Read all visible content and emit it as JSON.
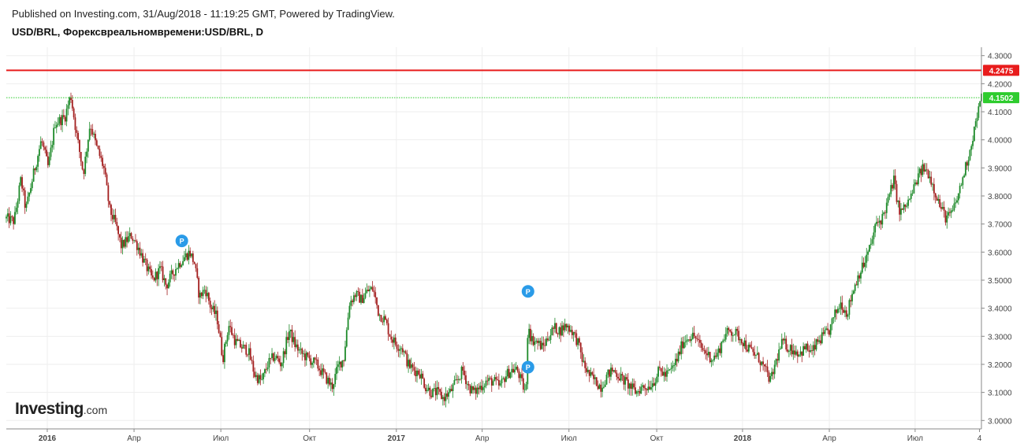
{
  "header": {
    "published": "Published on Investing.com, 31/Aug/2018 - 11:19:25 GMT, Powered by TradingView.",
    "symbol": "USD/BRL, Форексвреальномвремени:USD/BRL, D"
  },
  "logo": {
    "name": "Investing",
    "suffix": ".com"
  },
  "colors": {
    "up": "#1e8a2a",
    "down": "#a31f1f",
    "resistance": "#e81c1c",
    "current": "#2ecc2e",
    "grid": "#eeeeee",
    "axis": "#888888",
    "marker": "#2a9be8"
  },
  "chart_data": {
    "type": "candlestick",
    "ylim": [
      2.97,
      4.33
    ],
    "y_ticks": [
      "4.3000",
      "4.2000",
      "4.1000",
      "4.0000",
      "3.9000",
      "3.8000",
      "3.7000",
      "3.6000",
      "3.5000",
      "3.4000",
      "3.3000",
      "3.2000",
      "3.1000",
      "3.0000"
    ],
    "y_tick_values": [
      4.3,
      4.2,
      4.1,
      4.0,
      3.9,
      3.8,
      3.7,
      3.6,
      3.5,
      3.4,
      3.3,
      3.2,
      3.1,
      3.0
    ],
    "x_ticks": [
      "2016",
      "Апр",
      "Июл",
      "Окт",
      "2017",
      "Апр",
      "Июл",
      "Окт",
      "2018",
      "Апр",
      "Июл",
      "4"
    ],
    "x_tick_bold": [
      true,
      false,
      false,
      false,
      true,
      false,
      false,
      false,
      true,
      false,
      false,
      false
    ],
    "x_tick_pos": [
      0.042,
      0.131,
      0.22,
      0.311,
      0.4,
      0.488,
      0.577,
      0.667,
      0.755,
      0.844,
      0.932,
      0.998
    ],
    "horizontal_lines": [
      {
        "label": "4.2475",
        "value": 4.2475,
        "style": "solid",
        "color": "#e81c1c"
      },
      {
        "label": "4.1502",
        "value": 4.1502,
        "style": "dotted",
        "color": "#2ecc2e"
      }
    ],
    "markers": [
      {
        "label": "P",
        "x": 0.18,
        "y": 3.64
      },
      {
        "label": "P",
        "x": 0.535,
        "y": 3.46
      },
      {
        "label": "P",
        "x": 0.535,
        "y": 3.19
      }
    ],
    "path": [
      [
        0.0,
        3.72
      ],
      [
        0.008,
        3.71
      ],
      [
        0.015,
        3.86
      ],
      [
        0.02,
        3.75
      ],
      [
        0.028,
        3.88
      ],
      [
        0.036,
        4.0
      ],
      [
        0.043,
        3.9
      ],
      [
        0.05,
        4.06
      ],
      [
        0.06,
        4.08
      ],
      [
        0.066,
        4.16
      ],
      [
        0.072,
        4.02
      ],
      [
        0.079,
        3.88
      ],
      [
        0.086,
        4.06
      ],
      [
        0.092,
        3.98
      ],
      [
        0.1,
        3.9
      ],
      [
        0.106,
        3.75
      ],
      [
        0.112,
        3.7
      ],
      [
        0.118,
        3.62
      ],
      [
        0.128,
        3.66
      ],
      [
        0.135,
        3.62
      ],
      [
        0.142,
        3.56
      ],
      [
        0.15,
        3.5
      ],
      [
        0.158,
        3.54
      ],
      [
        0.164,
        3.48
      ],
      [
        0.17,
        3.52
      ],
      [
        0.175,
        3.55
      ],
      [
        0.182,
        3.58
      ],
      [
        0.188,
        3.6
      ],
      [
        0.193,
        3.56
      ],
      [
        0.198,
        3.44
      ],
      [
        0.204,
        3.47
      ],
      [
        0.21,
        3.4
      ],
      [
        0.216,
        3.37
      ],
      [
        0.222,
        3.22
      ],
      [
        0.228,
        3.34
      ],
      [
        0.235,
        3.28
      ],
      [
        0.242,
        3.26
      ],
      [
        0.248,
        3.25
      ],
      [
        0.255,
        3.16
      ],
      [
        0.262,
        3.14
      ],
      [
        0.268,
        3.2
      ],
      [
        0.275,
        3.23
      ],
      [
        0.282,
        3.2
      ],
      [
        0.29,
        3.32
      ],
      [
        0.296,
        3.27
      ],
      [
        0.302,
        3.24
      ],
      [
        0.31,
        3.22
      ],
      [
        0.318,
        3.2
      ],
      [
        0.326,
        3.16
      ],
      [
        0.334,
        3.12
      ],
      [
        0.341,
        3.2
      ],
      [
        0.346,
        3.22
      ],
      [
        0.352,
        3.42
      ],
      [
        0.358,
        3.45
      ],
      [
        0.364,
        3.43
      ],
      [
        0.37,
        3.46
      ],
      [
        0.376,
        3.47
      ],
      [
        0.382,
        3.38
      ],
      [
        0.388,
        3.36
      ],
      [
        0.394,
        3.3
      ],
      [
        0.4,
        3.27
      ],
      [
        0.406,
        3.26
      ],
      [
        0.412,
        3.2
      ],
      [
        0.418,
        3.18
      ],
      [
        0.424,
        3.17
      ],
      [
        0.43,
        3.12
      ],
      [
        0.436,
        3.1
      ],
      [
        0.442,
        3.1
      ],
      [
        0.448,
        3.08
      ],
      [
        0.455,
        3.1
      ],
      [
        0.462,
        3.14
      ],
      [
        0.468,
        3.18
      ],
      [
        0.474,
        3.12
      ],
      [
        0.48,
        3.1
      ],
      [
        0.486,
        3.12
      ],
      [
        0.492,
        3.14
      ],
      [
        0.5,
        3.14
      ],
      [
        0.506,
        3.12
      ],
      [
        0.512,
        3.16
      ],
      [
        0.518,
        3.18
      ],
      [
        0.524,
        3.18
      ],
      [
        0.53,
        3.12
      ],
      [
        0.533,
        3.1
      ],
      [
        0.535,
        3.36
      ],
      [
        0.538,
        3.29
      ],
      [
        0.544,
        3.28
      ],
      [
        0.55,
        3.26
      ],
      [
        0.556,
        3.3
      ],
      [
        0.562,
        3.33
      ],
      [
        0.568,
        3.32
      ],
      [
        0.574,
        3.34
      ],
      [
        0.58,
        3.32
      ],
      [
        0.586,
        3.28
      ],
      [
        0.592,
        3.2
      ],
      [
        0.598,
        3.16
      ],
      [
        0.604,
        3.14
      ],
      [
        0.61,
        3.12
      ],
      [
        0.616,
        3.16
      ],
      [
        0.622,
        3.18
      ],
      [
        0.628,
        3.16
      ],
      [
        0.634,
        3.14
      ],
      [
        0.64,
        3.12
      ],
      [
        0.646,
        3.1
      ],
      [
        0.652,
        3.12
      ],
      [
        0.658,
        3.12
      ],
      [
        0.664,
        3.14
      ],
      [
        0.67,
        3.18
      ],
      [
        0.676,
        3.16
      ],
      [
        0.682,
        3.18
      ],
      [
        0.688,
        3.22
      ],
      [
        0.694,
        3.28
      ],
      [
        0.7,
        3.3
      ],
      [
        0.706,
        3.3
      ],
      [
        0.712,
        3.26
      ],
      [
        0.718,
        3.24
      ],
      [
        0.724,
        3.22
      ],
      [
        0.73,
        3.24
      ],
      [
        0.736,
        3.3
      ],
      [
        0.742,
        3.32
      ],
      [
        0.748,
        3.31
      ],
      [
        0.754,
        3.29
      ],
      [
        0.76,
        3.26
      ],
      [
        0.766,
        3.24
      ],
      [
        0.772,
        3.22
      ],
      [
        0.778,
        3.18
      ],
      [
        0.784,
        3.14
      ],
      [
        0.79,
        3.22
      ],
      [
        0.796,
        3.28
      ],
      [
        0.802,
        3.26
      ],
      [
        0.808,
        3.25
      ],
      [
        0.814,
        3.24
      ],
      [
        0.82,
        3.26
      ],
      [
        0.826,
        3.24
      ],
      [
        0.832,
        3.28
      ],
      [
        0.838,
        3.3
      ],
      [
        0.844,
        3.32
      ],
      [
        0.85,
        3.38
      ],
      [
        0.856,
        3.42
      ],
      [
        0.862,
        3.38
      ],
      [
        0.868,
        3.46
      ],
      [
        0.874,
        3.52
      ],
      [
        0.88,
        3.56
      ],
      [
        0.886,
        3.62
      ],
      [
        0.892,
        3.7
      ],
      [
        0.898,
        3.72
      ],
      [
        0.904,
        3.78
      ],
      [
        0.91,
        3.86
      ],
      [
        0.916,
        3.74
      ],
      [
        0.922,
        3.76
      ],
      [
        0.928,
        3.8
      ],
      [
        0.934,
        3.86
      ],
      [
        0.94,
        3.9
      ],
      [
        0.946,
        3.88
      ],
      [
        0.952,
        3.82
      ],
      [
        0.958,
        3.76
      ],
      [
        0.964,
        3.72
      ],
      [
        0.97,
        3.74
      ],
      [
        0.976,
        3.8
      ],
      [
        0.982,
        3.88
      ],
      [
        0.988,
        3.96
      ],
      [
        0.994,
        4.06
      ],
      [
        1.0,
        4.15
      ]
    ]
  }
}
